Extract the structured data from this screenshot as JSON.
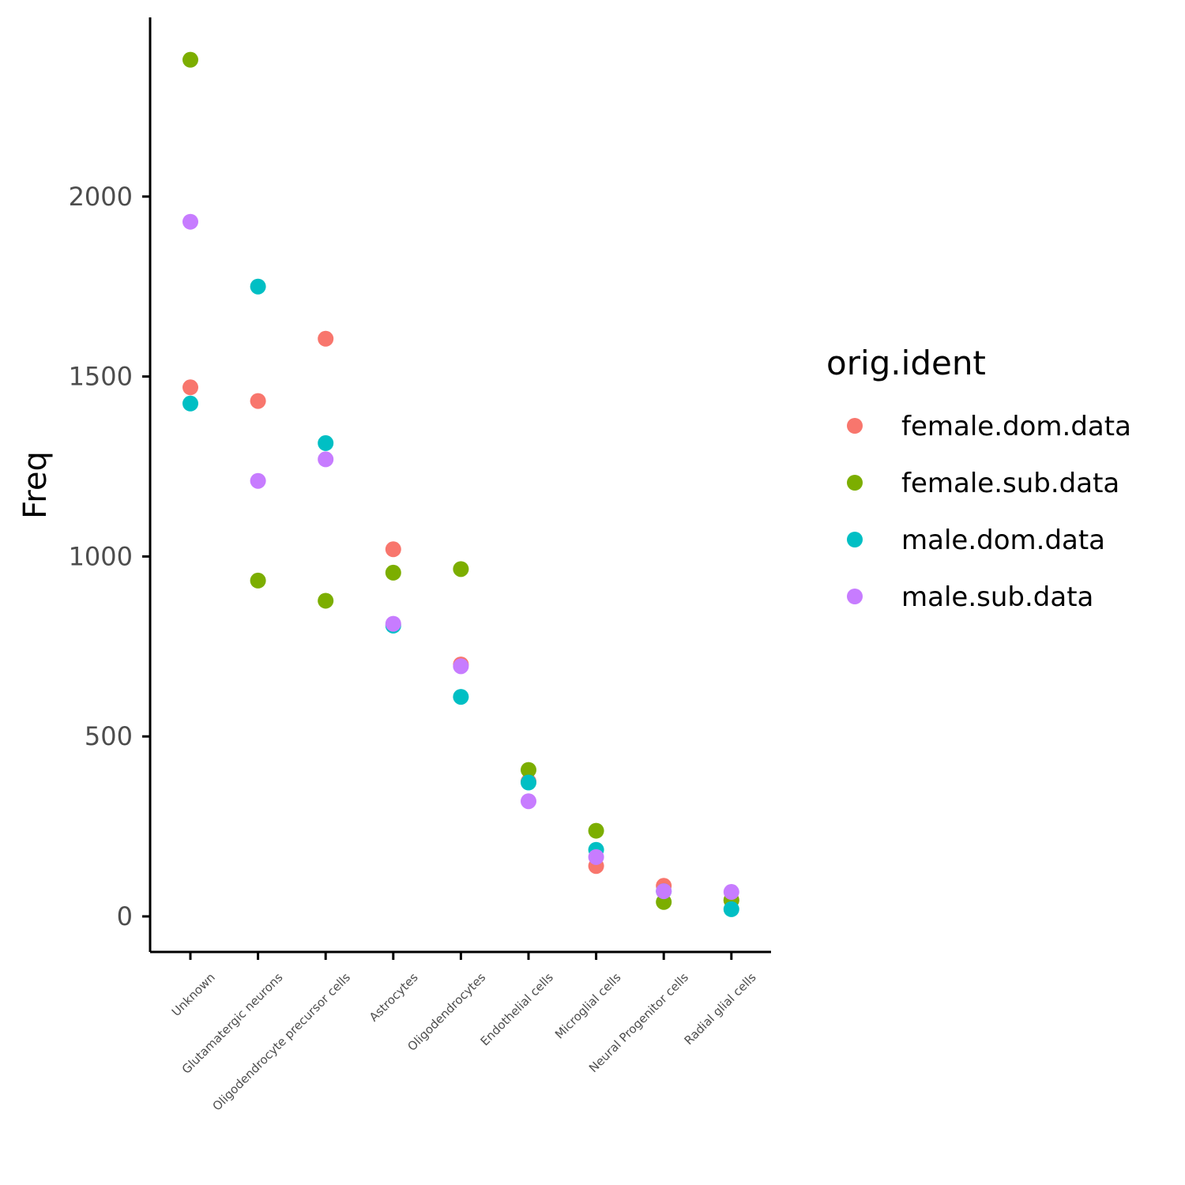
{
  "chart_data": {
    "type": "scatter",
    "title": "",
    "xlabel": "",
    "ylabel": "Freq",
    "ylim": [
      -95,
      2500
    ],
    "y_ticks": [
      0,
      500,
      1000,
      1500,
      2000
    ],
    "grid": false,
    "legend": {
      "title": "orig.ident",
      "position": "right"
    },
    "categories": [
      "Unknown",
      "Glutamatergic neurons",
      "Oligodendrocyte precursor cells",
      "Astrocytes",
      "Oligodendrocytes",
      "Endothelial cells",
      "Microglial cells",
      "Neural Progenitor cells",
      "Radial glial cells"
    ],
    "series": [
      {
        "name": "female.dom.data",
        "color": "#F8766D",
        "values": [
          1470,
          1432,
          1605,
          1020,
          700,
          375,
          140,
          85,
          45
        ]
      },
      {
        "name": "female.sub.data",
        "color": "#7CAE00",
        "values": [
          2380,
          933,
          877,
          955,
          965,
          407,
          238,
          40,
          45
        ]
      },
      {
        "name": "male.dom.data",
        "color": "#00BFC4",
        "values": [
          1425,
          1750,
          1315,
          808,
          610,
          372,
          185,
          70,
          20
        ]
      },
      {
        "name": "male.sub.data",
        "color": "#C77CFF",
        "values": [
          1930,
          1210,
          1270,
          813,
          695,
          320,
          165,
          70,
          68
        ]
      }
    ]
  }
}
